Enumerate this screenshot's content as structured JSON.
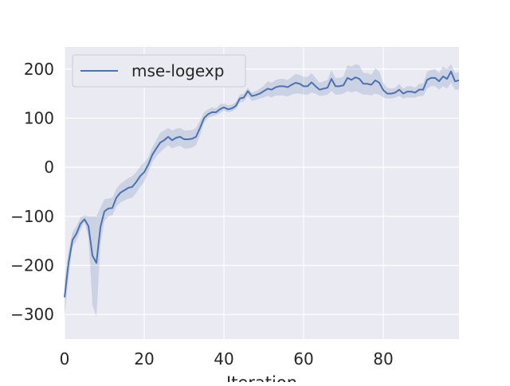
{
  "chart_data": {
    "type": "line",
    "xlabel": "Iteration",
    "ylabel": "",
    "xlim": [
      0,
      99
    ],
    "ylim": [
      -350,
      245
    ],
    "x_ticks": [
      0,
      20,
      40,
      60,
      80
    ],
    "y_ticks": [
      -300,
      -200,
      -100,
      0,
      100,
      200
    ],
    "x_tick_labels": [
      "0",
      "20",
      "40",
      "60",
      "80"
    ],
    "y_tick_labels": [
      "−300",
      "−200",
      "−100",
      "0",
      "100",
      "200"
    ],
    "grid": true,
    "legend_position": "top-left",
    "series": [
      {
        "name": "mse-logexp",
        "color": "#4c72b0",
        "band_color": "#4c72b0",
        "x": [
          0,
          1,
          2,
          3,
          4,
          5,
          6,
          7,
          8,
          9,
          10,
          11,
          12,
          13,
          14,
          15,
          16,
          17,
          18,
          19,
          20,
          21,
          22,
          23,
          24,
          25,
          26,
          27,
          28,
          29,
          30,
          31,
          32,
          33,
          34,
          35,
          36,
          37,
          38,
          39,
          40,
          41,
          42,
          43,
          44,
          45,
          46,
          47,
          48,
          49,
          50,
          51,
          52,
          53,
          54,
          55,
          56,
          57,
          58,
          59,
          60,
          61,
          62,
          63,
          64,
          65,
          66,
          67,
          68,
          69,
          70,
          71,
          72,
          73,
          74,
          75,
          76,
          77,
          78,
          79,
          80,
          81,
          82,
          83,
          84,
          85,
          86,
          87,
          88,
          89,
          90,
          91,
          92,
          93,
          94,
          95,
          96,
          97,
          98,
          99
        ],
        "values": [
          -265,
          -195,
          -148,
          -135,
          -115,
          -106,
          -120,
          -180,
          -195,
          -122,
          -90,
          -84,
          -83,
          -62,
          -52,
          -47,
          -42,
          -40,
          -30,
          -18,
          -10,
          5,
          25,
          38,
          50,
          55,
          62,
          55,
          60,
          62,
          57,
          57,
          58,
          62,
          80,
          100,
          108,
          112,
          112,
          118,
          122,
          118,
          120,
          125,
          140,
          142,
          155,
          145,
          147,
          150,
          155,
          160,
          158,
          163,
          165,
          165,
          163,
          168,
          172,
          170,
          165,
          165,
          173,
          165,
          158,
          160,
          162,
          180,
          165,
          165,
          167,
          182,
          178,
          183,
          180,
          170,
          170,
          168,
          177,
          172,
          157,
          150,
          150,
          152,
          158,
          150,
          154,
          154,
          152,
          158,
          158,
          178,
          182,
          182,
          175,
          185,
          180,
          195,
          175,
          177
        ],
        "lower": [
          -305,
          -225,
          -162,
          -150,
          -128,
          -112,
          -142,
          -280,
          -305,
          -160,
          -110,
          -100,
          -98,
          -80,
          -72,
          -68,
          -64,
          -62,
          -52,
          -40,
          -30,
          -10,
          10,
          22,
          30,
          38,
          45,
          38,
          42,
          44,
          38,
          38,
          40,
          45,
          65,
          90,
          100,
          104,
          106,
          110,
          115,
          112,
          114,
          118,
          132,
          134,
          145,
          135,
          137,
          140,
          142,
          145,
          142,
          146,
          146,
          146,
          144,
          148,
          150,
          150,
          148,
          148,
          152,
          150,
          145,
          146,
          148,
          155,
          148,
          148,
          150,
          155,
          152,
          155,
          152,
          148,
          148,
          146,
          150,
          148,
          142,
          140,
          140,
          142,
          145,
          140,
          142,
          142,
          142,
          145,
          145,
          160,
          165,
          165,
          158,
          165,
          160,
          172,
          158,
          158
        ],
        "upper": [
          -230,
          -170,
          -132,
          -120,
          -102,
          -98,
          -100,
          -100,
          -100,
          -82,
          -65,
          -64,
          -62,
          -44,
          -34,
          -28,
          -22,
          -18,
          -10,
          2,
          10,
          20,
          40,
          55,
          70,
          75,
          80,
          75,
          78,
          80,
          75,
          75,
          76,
          80,
          95,
          112,
          118,
          122,
          120,
          128,
          130,
          126,
          128,
          133,
          148,
          150,
          162,
          152,
          155,
          160,
          166,
          175,
          172,
          178,
          180,
          180,
          178,
          184,
          190,
          188,
          184,
          184,
          192,
          182,
          172,
          175,
          178,
          198,
          182,
          182,
          185,
          208,
          205,
          210,
          208,
          192,
          192,
          188,
          202,
          195,
          172,
          162,
          160,
          162,
          170,
          160,
          165,
          165,
          162,
          170,
          170,
          195,
          198,
          200,
          192,
          205,
          200,
          210,
          192,
          194
        ]
      }
    ]
  }
}
